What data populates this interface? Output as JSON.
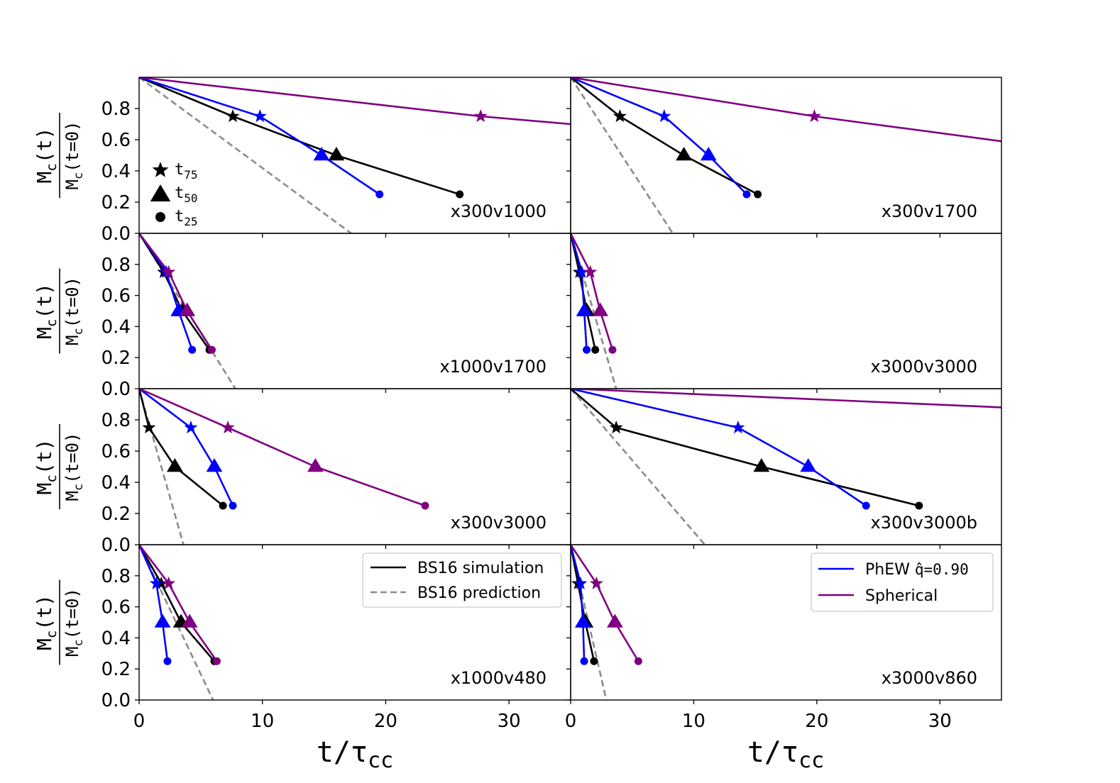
{
  "figure": {
    "xlabel": "t/τ",
    "xlabel_sub": "cc",
    "ylabel_num_main": "M",
    "ylabel_num_sub": "c",
    "ylabel_num_tail": "(t)",
    "ylabel_den_main": "M",
    "ylabel_den_sub": "c",
    "ylabel_den_tail": "(t=0)",
    "xlim": [
      0,
      35
    ],
    "ylim": [
      0,
      1
    ],
    "xticks": [
      "0",
      "10",
      "20",
      "30"
    ],
    "yticks": [
      "0.0",
      "0.2",
      "0.4",
      "0.6",
      "0.8"
    ]
  },
  "markers_legend": [
    {
      "label_main": "t",
      "label_sub": "75",
      "marker": "star"
    },
    {
      "label_main": "t",
      "label_sub": "50",
      "marker": "triangle"
    },
    {
      "label_main": "t",
      "label_sub": "25",
      "marker": "circle"
    }
  ],
  "legend_left": [
    {
      "label": "BS16 simulation",
      "style": "solid",
      "color": "#000000"
    },
    {
      "label": "BS16 prediction",
      "style": "dashed",
      "color": "#8c8c8c"
    }
  ],
  "legend_right": [
    {
      "label": "PhEW ",
      "label_mono": "q̂=0.90",
      "style": "solid",
      "color": "#0000ff"
    },
    {
      "label": "Spherical",
      "label_mono": "",
      "style": "solid",
      "color": "#800080"
    }
  ],
  "colors": {
    "simulation": "#000000",
    "prediction": "#8c8c8c",
    "phew": "#0000ff",
    "spherical": "#800080"
  },
  "chart_data": [
    {
      "type": "line",
      "title": "x300v1000",
      "pred_end_x": 17.2,
      "series": [
        {
          "name": "BS16 simulation",
          "x": [
            0,
            7.6,
            16.0,
            26.0
          ],
          "y": [
            1,
            0.75,
            0.5,
            0.25
          ]
        },
        {
          "name": "PhEW",
          "x": [
            0,
            9.8,
            14.8,
            19.5
          ],
          "y": [
            1,
            0.75,
            0.5,
            0.25
          ]
        },
        {
          "name": "Spherical",
          "x": [
            0,
            27.7,
            35
          ],
          "y": [
            1,
            0.75,
            0.7
          ],
          "extend": true
        }
      ]
    },
    {
      "type": "line",
      "title": "x300v1700",
      "pred_end_x": 8.3,
      "series": [
        {
          "name": "BS16 simulation",
          "x": [
            0,
            4.0,
            9.2,
            15.2
          ],
          "y": [
            1,
            0.75,
            0.5,
            0.25
          ]
        },
        {
          "name": "PhEW",
          "x": [
            0,
            7.6,
            11.2,
            14.3
          ],
          "y": [
            1,
            0.75,
            0.5,
            0.25
          ]
        },
        {
          "name": "Spherical",
          "x": [
            0,
            19.8,
            35
          ],
          "y": [
            1,
            0.75,
            0.59
          ],
          "extend": true
        }
      ]
    },
    {
      "type": "line",
      "title": "x1000v1700",
      "pred_end_x": 7.8,
      "series": [
        {
          "name": "BS16 simulation",
          "x": [
            0,
            2.0,
            3.5,
            5.7
          ],
          "y": [
            1,
            0.75,
            0.5,
            0.25
          ]
        },
        {
          "name": "PhEW",
          "x": [
            0,
            2.2,
            3.2,
            4.3
          ],
          "y": [
            1,
            0.75,
            0.5,
            0.25
          ]
        },
        {
          "name": "Spherical",
          "x": [
            0,
            2.4,
            3.9,
            5.9
          ],
          "y": [
            1,
            0.75,
            0.5,
            0.25
          ]
        }
      ]
    },
    {
      "type": "line",
      "title": "x3000v3000",
      "pred_end_x": 3.7,
      "series": [
        {
          "name": "BS16 simulation",
          "x": [
            0,
            0.7,
            1.3,
            2.0
          ],
          "y": [
            1,
            0.75,
            0.5,
            0.25
          ]
        },
        {
          "name": "PhEW",
          "x": [
            0,
            0.9,
            1.1,
            1.3
          ],
          "y": [
            1,
            0.75,
            0.5,
            0.25
          ]
        },
        {
          "name": "Spherical",
          "x": [
            0,
            1.6,
            2.4,
            3.4
          ],
          "y": [
            1,
            0.75,
            0.5,
            0.25
          ]
        }
      ]
    },
    {
      "type": "line",
      "title": "x300v3000",
      "pred_end_x": 3.6,
      "series": [
        {
          "name": "BS16 simulation",
          "x": [
            0,
            0.8,
            2.9,
            6.8
          ],
          "y": [
            1,
            0.75,
            0.5,
            0.25
          ]
        },
        {
          "name": "PhEW",
          "x": [
            0,
            4.2,
            6.1,
            7.6
          ],
          "y": [
            1,
            0.75,
            0.5,
            0.25
          ]
        },
        {
          "name": "Spherical",
          "x": [
            0,
            7.2,
            14.3,
            23.2
          ],
          "y": [
            1,
            0.75,
            0.5,
            0.25
          ]
        }
      ]
    },
    {
      "type": "line",
      "title": "x300v3000b",
      "pred_end_x": 10.9,
      "series": [
        {
          "name": "BS16 simulation",
          "x": [
            0,
            3.7,
            15.5,
            28.3
          ],
          "y": [
            1,
            0.75,
            0.5,
            0.25
          ]
        },
        {
          "name": "PhEW",
          "x": [
            0,
            13.6,
            19.3,
            24.0
          ],
          "y": [
            1,
            0.75,
            0.5,
            0.25
          ]
        },
        {
          "name": "Spherical",
          "x": [
            0,
            35
          ],
          "y": [
            1,
            0.88
          ],
          "extend": true
        }
      ]
    },
    {
      "type": "line",
      "title": "x1000v480",
      "pred_end_x": 6.0,
      "series": [
        {
          "name": "BS16 simulation",
          "x": [
            0,
            1.8,
            3.4,
            6.1
          ],
          "y": [
            1,
            0.75,
            0.5,
            0.25
          ]
        },
        {
          "name": "PhEW",
          "x": [
            0,
            1.4,
            1.9,
            2.3
          ],
          "y": [
            1,
            0.75,
            0.5,
            0.25
          ]
        },
        {
          "name": "Spherical",
          "x": [
            0,
            2.4,
            4.1,
            6.3
          ],
          "y": [
            1,
            0.75,
            0.5,
            0.25
          ]
        }
      ]
    },
    {
      "type": "line",
      "title": "x3000v860",
      "pred_end_x": 2.9,
      "series": [
        {
          "name": "BS16 simulation",
          "x": [
            0,
            0.6,
            1.2,
            1.9
          ],
          "y": [
            1,
            0.75,
            0.5,
            0.25
          ]
        },
        {
          "name": "PhEW",
          "x": [
            0,
            0.8,
            1.0,
            1.1
          ],
          "y": [
            1,
            0.75,
            0.5,
            0.25
          ]
        },
        {
          "name": "Spherical",
          "x": [
            0,
            2.1,
            3.6,
            5.5
          ],
          "y": [
            1,
            0.75,
            0.5,
            0.25
          ]
        }
      ]
    }
  ]
}
